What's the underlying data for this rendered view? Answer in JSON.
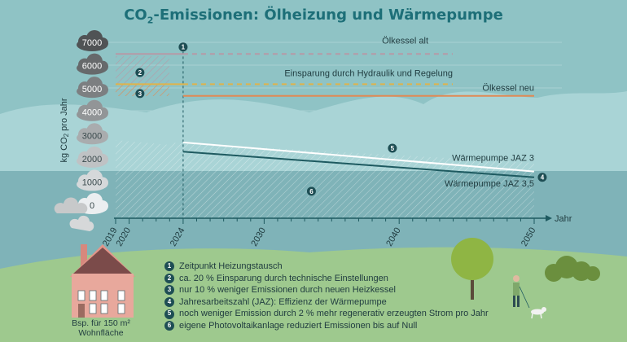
{
  "title": {
    "prefix": "CO",
    "subscript": "2",
    "suffix": "-Emissionen: Ölheizung und Wärmepumpe"
  },
  "chart_data": {
    "type": "line",
    "ylabel": "kg CO2 pro Jahr",
    "xlabel": "Jahr",
    "xlim": [
      2019,
      2050
    ],
    "ylim": [
      0,
      7000
    ],
    "y_ticks": [
      0,
      1000,
      2000,
      3000,
      4000,
      5000,
      6000,
      7000
    ],
    "x_ticks": [
      2019,
      2020,
      2024,
      2030,
      2040,
      2050
    ],
    "series": [
      {
        "name": "Ölkessel alt",
        "x": [
          2019,
          2024,
          2050
        ],
        "y": [
          6500,
          6500,
          6500
        ],
        "style": "solid-then-dashed",
        "color": "#b69aa6"
      },
      {
        "name": "Einsparung durch Hydraulik und Regelung",
        "x": [
          2019,
          2024,
          2050
        ],
        "y": [
          5200,
          5200,
          5200
        ],
        "style": "solid-then-dashed",
        "color": "#e0b34a"
      },
      {
        "name": "Ölkessel neu",
        "x": [
          2024,
          2050
        ],
        "y": [
          4700,
          4700
        ],
        "color": "#e08a55"
      },
      {
        "name": "Wärmepumpe JAZ 3",
        "x": [
          2024,
          2050
        ],
        "y": [
          2700,
          1450
        ],
        "color": "#ffffff"
      },
      {
        "name": "Wärmepumpe JAZ 3,5",
        "x": [
          2024,
          2050
        ],
        "y": [
          2300,
          1200
        ],
        "color": "#1e5a60"
      }
    ],
    "markers": [
      {
        "label": "1",
        "x": 2024,
        "y": 6800
      },
      {
        "label": "2",
        "x": 2020.8,
        "y": 5700
      },
      {
        "label": "3",
        "x": 2020.8,
        "y": 4800
      },
      {
        "label": "4",
        "x": 2050.6,
        "y": 1200
      },
      {
        "label": "5",
        "x": 2039.5,
        "y": 2450
      },
      {
        "label": "6",
        "x": 2033.5,
        "y": 600
      }
    ]
  },
  "legend": [
    {
      "num": "1",
      "text": "Zeitpunkt Heizungstausch"
    },
    {
      "num": "2",
      "text": "ca. 20 % Einsparung durch technische Einstellungen"
    },
    {
      "num": "3",
      "text": "nur 10 % weniger Emissionen durch neuen Heizkessel"
    },
    {
      "num": "4",
      "text": "Jahresarbeitszahl (JAZ): Effizienz der Wärmepumpe"
    },
    {
      "num": "5",
      "text": "noch weniger Emission durch 2 % mehr regenerativ erzeugten Strom pro Jahr"
    },
    {
      "num": "6",
      "text": "eigene Photovoltaikanlage reduziert Emissionen bis auf Null"
    }
  ],
  "house_caption": {
    "line1": "Bsp. für 150 m²",
    "line2": "Wohnfläche"
  },
  "colors": {
    "teal_dark": "#1e5a60",
    "sky": "#8fc3c5",
    "grass": "#9ec98e",
    "cloud_dark": "#555a5b",
    "cloud_light": "#e9eef0"
  }
}
